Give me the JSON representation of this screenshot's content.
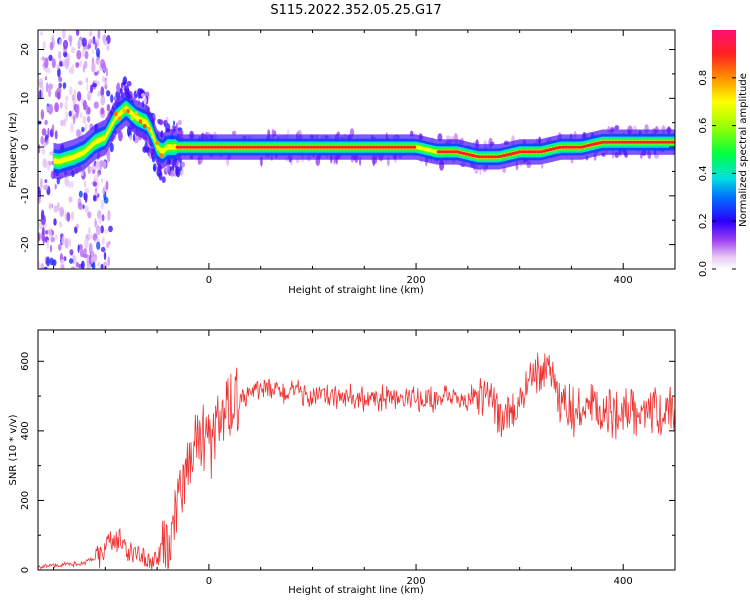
{
  "title": "S115.2022.352.05.25.G17",
  "chart_data": [
    {
      "type": "heatmap",
      "xlabel": "Height of straight line (km)",
      "ylabel": "Frequency (Hz)",
      "xlim": [
        -165,
        450
      ],
      "ylim": [
        -25,
        24
      ],
      "xticks": [
        0,
        200,
        400
      ],
      "yticks": [
        -20,
        -10,
        0,
        10,
        20
      ],
      "ridge": {
        "x": [
          -165,
          -145,
          -130,
          -120,
          -110,
          -100,
          -90,
          -80,
          -70,
          -60,
          -55,
          -50,
          -45,
          -40,
          -30,
          -20,
          0,
          100,
          200,
          220,
          240,
          260,
          280,
          300,
          320,
          340,
          360,
          380,
          400,
          420,
          450
        ],
        "y": [
          -2,
          -3,
          -2,
          -1,
          1,
          2,
          6,
          8,
          6,
          5,
          3,
          0,
          -1,
          0,
          0,
          0,
          0,
          0,
          0,
          -1,
          -1,
          -2,
          -2,
          -1,
          -1,
          0,
          0,
          1,
          1,
          1,
          1
        ]
      },
      "colorbar": {
        "label": "Normalized spectral amplitude",
        "ticks": [
          "0.0",
          "0.2",
          "0.4",
          "0.6",
          "0.8"
        ],
        "range": [
          0,
          1
        ]
      }
    },
    {
      "type": "line",
      "xlabel": "Height of straight line (km)",
      "ylabel": "SNR (10 * v/v)",
      "xlim": [
        -165,
        450
      ],
      "ylim": [
        0,
        690
      ],
      "xticks": [
        0,
        200,
        400
      ],
      "yticks": [
        0,
        200,
        400,
        600
      ],
      "color": "#ee3333",
      "series": [
        {
          "x": [
            -165,
            -140,
            -120,
            -105,
            -95,
            -85,
            -75,
            -65,
            -55,
            -45,
            -35,
            -25,
            -15,
            0,
            10,
            20,
            30,
            50,
            100,
            150,
            200,
            250,
            270,
            280,
            290,
            300,
            310,
            320,
            330,
            340,
            360,
            380,
            400,
            420,
            440,
            450
          ],
          "values": [
            10,
            15,
            20,
            40,
            90,
            80,
            50,
            30,
            20,
            60,
            120,
            220,
            360,
            360,
            400,
            460,
            500,
            520,
            500,
            490,
            490,
            490,
            500,
            440,
            450,
            480,
            560,
            580,
            590,
            460,
            460,
            450,
            460,
            470,
            450,
            430
          ]
        }
      ]
    }
  ]
}
